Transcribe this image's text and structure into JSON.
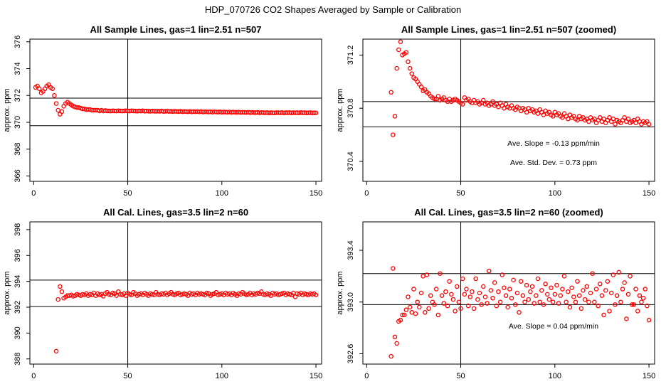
{
  "title": "HDP_070726  CO2 Shapes Averaged by Sample or Calibration",
  "colors": {
    "points": "#ff0000",
    "lines": "#000000"
  },
  "chart_data": [
    {
      "type": "scatter",
      "title": "All Sample Lines, gas=1 lin=2.51 n=507",
      "ylabel": "approx. ppm",
      "xlim": [
        -2,
        153
      ],
      "ylim": [
        365.6,
        376.2
      ],
      "xticks": [
        0,
        50,
        100,
        150
      ],
      "yticks": [
        366,
        368,
        370,
        372,
        374,
        376
      ],
      "vline": 50,
      "hlines": [
        369.75,
        371.8
      ],
      "notes": [],
      "x": [
        1,
        2,
        3,
        4,
        5,
        6,
        7,
        8,
        9,
        10,
        11,
        12,
        13,
        14,
        15,
        16,
        17,
        18,
        19,
        20,
        21,
        22,
        23,
        24,
        25,
        26,
        27,
        28,
        29,
        30,
        31,
        32,
        33,
        34,
        35,
        36,
        37,
        38,
        39,
        40,
        41,
        42,
        43,
        44,
        45,
        46,
        47,
        48,
        49,
        50,
        51,
        52,
        53,
        54,
        55,
        56,
        57,
        58,
        59,
        60,
        61,
        62,
        63,
        64,
        65,
        66,
        67,
        68,
        69,
        70,
        71,
        72,
        73,
        74,
        75,
        76,
        77,
        78,
        79,
        80,
        81,
        82,
        83,
        84,
        85,
        86,
        87,
        88,
        89,
        90,
        91,
        92,
        93,
        94,
        95,
        96,
        97,
        98,
        99,
        100,
        101,
        102,
        103,
        104,
        105,
        106,
        107,
        108,
        109,
        110,
        111,
        112,
        113,
        114,
        115,
        116,
        117,
        118,
        119,
        120,
        121,
        122,
        123,
        124,
        125,
        126,
        127,
        128,
        129,
        130,
        131,
        132,
        133,
        134,
        135,
        136,
        137,
        138,
        139,
        140,
        141,
        142,
        143,
        144,
        145,
        146,
        147,
        148,
        149,
        150
      ],
      "y": [
        372.6,
        372.7,
        372.5,
        372.2,
        372.3,
        372.5,
        372.7,
        372.8,
        372.6,
        372.5,
        372.0,
        371.4,
        370.9,
        370.6,
        370.8,
        371.2,
        371.4,
        371.5,
        371.4,
        371.3,
        371.2,
        371.15,
        371.1,
        371.1,
        371.05,
        371.0,
        371.0,
        370.95,
        370.95,
        370.95,
        370.9,
        370.9,
        370.9,
        370.9,
        370.85,
        370.9,
        370.85,
        370.88,
        370.85,
        370.85,
        370.84,
        370.86,
        370.85,
        370.84,
        370.86,
        370.85,
        370.84,
        370.85,
        370.86,
        370.85,
        370.84,
        370.86,
        370.85,
        370.84,
        370.83,
        370.85,
        370.84,
        370.86,
        370.83,
        370.84,
        370.83,
        370.82,
        370.84,
        370.83,
        370.82,
        370.83,
        370.82,
        370.84,
        370.81,
        370.82,
        370.83,
        370.81,
        370.82,
        370.8,
        370.82,
        370.81,
        370.8,
        370.82,
        370.79,
        370.81,
        370.8,
        370.79,
        370.81,
        370.78,
        370.8,
        370.79,
        370.8,
        370.78,
        370.8,
        370.77,
        370.79,
        370.78,
        370.77,
        370.79,
        370.76,
        370.78,
        370.77,
        370.76,
        370.78,
        370.75,
        370.77,
        370.76,
        370.75,
        370.77,
        370.74,
        370.76,
        370.75,
        370.74,
        370.76,
        370.73,
        370.75,
        370.74,
        370.73,
        370.75,
        370.72,
        370.74,
        370.73,
        370.72,
        370.74,
        370.71,
        370.73,
        370.72,
        370.71,
        370.73,
        370.7,
        370.72,
        370.71,
        370.7,
        370.72,
        370.72,
        370.71,
        370.73,
        370.7,
        370.72,
        370.71,
        370.73,
        370.7,
        370.72,
        370.71,
        370.72,
        370.7,
        370.73,
        370.71,
        370.72,
        370.7,
        370.71,
        370.72,
        370.7,
        370.71,
        370.7
      ]
    },
    {
      "type": "scatter",
      "title": "All Sample Lines, gas=1 lin=2.51 n=507 (zoomed)",
      "ylabel": "approx. ppm",
      "xlim": [
        -2,
        153
      ],
      "ylim": [
        370.25,
        371.32
      ],
      "xticks": [
        0,
        50,
        100,
        150
      ],
      "yticks": [
        370.4,
        370.8,
        371.2
      ],
      "vline": 50,
      "hlines": [
        370.66,
        370.85
      ],
      "notes": [
        "Ave. Slope =  -0.13  ppm/min",
        "Ave. Std. Dev. =  0.73  ppm"
      ],
      "x": [
        13,
        14,
        15,
        16,
        17,
        18,
        19,
        20,
        21,
        22,
        23,
        24,
        25,
        26,
        27,
        28,
        29,
        30,
        31,
        32,
        33,
        34,
        35,
        36,
        37,
        38,
        39,
        40,
        41,
        42,
        43,
        44,
        45,
        46,
        47,
        48,
        49,
        50,
        51,
        52,
        53,
        54,
        55,
        56,
        57,
        58,
        59,
        60,
        61,
        62,
        63,
        64,
        65,
        66,
        67,
        68,
        69,
        70,
        71,
        72,
        73,
        74,
        75,
        76,
        77,
        78,
        79,
        80,
        81,
        82,
        83,
        84,
        85,
        86,
        87,
        88,
        89,
        90,
        91,
        92,
        93,
        94,
        95,
        96,
        97,
        98,
        99,
        100,
        101,
        102,
        103,
        104,
        105,
        106,
        107,
        108,
        109,
        110,
        111,
        112,
        113,
        114,
        115,
        116,
        117,
        118,
        119,
        120,
        121,
        122,
        123,
        124,
        125,
        126,
        127,
        128,
        129,
        130,
        131,
        132,
        133,
        134,
        135,
        136,
        137,
        138,
        139,
        140,
        141,
        142,
        143,
        144,
        145,
        146,
        147,
        148,
        149,
        150
      ],
      "y": [
        370.92,
        370.6,
        370.74,
        371.1,
        371.24,
        371.3,
        371.2,
        371.21,
        371.22,
        371.15,
        371.1,
        371.06,
        371.03,
        371.02,
        371.0,
        370.98,
        370.96,
        370.93,
        370.94,
        370.92,
        370.91,
        370.89,
        370.88,
        370.87,
        370.87,
        370.89,
        370.86,
        370.87,
        370.88,
        370.86,
        370.85,
        370.87,
        370.85,
        370.86,
        370.87,
        370.86,
        370.85,
        370.84,
        370.83,
        370.88,
        370.86,
        370.87,
        370.85,
        370.84,
        370.86,
        370.84,
        370.85,
        370.83,
        370.84,
        370.86,
        370.83,
        370.84,
        370.82,
        370.83,
        370.85,
        370.82,
        370.83,
        370.81,
        370.84,
        370.82,
        370.8,
        370.83,
        370.81,
        370.8,
        370.82,
        370.8,
        370.79,
        370.81,
        370.8,
        370.78,
        370.8,
        370.79,
        370.77,
        370.8,
        370.78,
        370.79,
        370.77,
        370.78,
        370.76,
        370.79,
        370.77,
        370.75,
        370.78,
        370.76,
        370.77,
        370.75,
        370.74,
        370.77,
        370.75,
        370.76,
        370.74,
        370.73,
        370.76,
        370.74,
        370.72,
        370.75,
        370.73,
        370.74,
        370.72,
        370.71,
        370.74,
        370.72,
        370.73,
        370.71,
        370.72,
        370.7,
        370.73,
        370.71,
        370.72,
        370.69,
        370.71,
        370.73,
        370.7,
        370.72,
        370.69,
        370.71,
        370.73,
        370.7,
        370.72,
        370.68,
        370.71,
        370.7,
        370.69,
        370.71,
        370.73,
        370.7,
        370.72,
        370.69,
        370.7,
        370.71,
        370.69,
        370.72,
        370.7,
        370.68,
        370.7,
        370.69,
        370.7,
        370.68
      ]
    },
    {
      "type": "scatter",
      "title": "All Cal. Lines, gas=3.5 lin=2 n=60",
      "ylabel": "approx. ppm",
      "xlim": [
        -2,
        153
      ],
      "ylim": [
        387.6,
        398.6
      ],
      "xticks": [
        0,
        50,
        100,
        150
      ],
      "yticks": [
        388,
        390,
        392,
        394,
        396,
        398
      ],
      "vline": 50,
      "hlines": [
        392.05,
        394.1
      ],
      "notes": [],
      "x": [
        12,
        13,
        14,
        15,
        16,
        17,
        18,
        19,
        20,
        21,
        22,
        23,
        24,
        25,
        26,
        27,
        28,
        29,
        30,
        31,
        32,
        33,
        34,
        35,
        36,
        37,
        38,
        39,
        40,
        41,
        42,
        43,
        44,
        45,
        46,
        47,
        48,
        49,
        50,
        51,
        52,
        53,
        54,
        55,
        56,
        57,
        58,
        59,
        60,
        61,
        62,
        63,
        64,
        65,
        66,
        67,
        68,
        69,
        70,
        71,
        72,
        73,
        74,
        75,
        76,
        77,
        78,
        79,
        80,
        81,
        82,
        83,
        84,
        85,
        86,
        87,
        88,
        89,
        90,
        91,
        92,
        93,
        94,
        95,
        96,
        97,
        98,
        99,
        100,
        101,
        102,
        103,
        104,
        105,
        106,
        107,
        108,
        109,
        110,
        111,
        112,
        113,
        114,
        115,
        116,
        117,
        118,
        119,
        120,
        121,
        122,
        123,
        124,
        125,
        126,
        127,
        128,
        129,
        130,
        131,
        132,
        133,
        134,
        135,
        136,
        137,
        138,
        139,
        140,
        141,
        142,
        143,
        144,
        145,
        146,
        147,
        148,
        149,
        150
      ],
      "y": [
        388.6,
        392.6,
        393.6,
        393.2,
        392.7,
        392.8,
        392.9,
        392.9,
        392.95,
        392.85,
        392.9,
        393.0,
        392.95,
        392.9,
        393.0,
        392.95,
        393.05,
        392.9,
        393.0,
        392.95,
        393.1,
        392.9,
        393.05,
        392.95,
        393.0,
        392.85,
        393.05,
        393.15,
        393.0,
        392.95,
        393.1,
        393.05,
        392.9,
        393.2,
        393.0,
        392.95,
        393.05,
        392.9,
        393.1,
        393.0,
        392.95,
        393.15,
        393.05,
        392.9,
        393.0,
        393.05,
        392.95,
        393.1,
        393.0,
        392.9,
        393.05,
        393.0,
        392.95,
        393.15,
        393.0,
        392.95,
        393.05,
        393.0,
        393.1,
        392.95,
        393.05,
        393.15,
        393.0,
        392.95,
        393.05,
        393.1,
        392.95,
        393.0,
        393.05,
        393.0,
        392.9,
        393.1,
        393.0,
        393.05,
        392.95,
        393.1,
        393.0,
        393.05,
        393.0,
        392.95,
        393.1,
        393.05,
        392.9,
        393.0,
        393.05,
        393.15,
        392.95,
        393.0,
        393.05,
        392.95,
        393.1,
        393.0,
        393.05,
        392.95,
        393.1,
        393.0,
        392.9,
        393.05,
        393.0,
        393.15,
        393.05,
        392.95,
        393.0,
        393.1,
        392.95,
        393.05,
        393.0,
        393.1,
        393.05,
        393.2,
        393.0,
        392.95,
        393.05,
        393.0,
        392.9,
        393.1,
        393.0,
        393.05,
        392.95,
        393.0,
        393.05,
        393.1,
        392.95,
        393.05,
        393.0,
        392.95,
        393.1,
        392.8,
        393.05,
        393.0,
        393.1,
        392.95,
        393.05,
        393.0,
        392.95,
        393.05,
        393.0,
        393.05,
        392.95
      ]
    },
    {
      "type": "scatter",
      "title": "All Cal. Lines, gas=3.5 lin=2 n=60 (zoomed)",
      "ylabel": "approx. ppm",
      "xlim": [
        -2,
        153
      ],
      "ylim": [
        392.52,
        393.62
      ],
      "xticks": [
        0,
        50,
        100,
        150
      ],
      "yticks": [
        392.6,
        393.0,
        393.4
      ],
      "vline": 50,
      "hlines": [
        392.98,
        393.22
      ],
      "notes": [
        "Ave. Slope =  0.04  ppm/min"
      ],
      "x": [
        13,
        14,
        15,
        16,
        17,
        18,
        19,
        20,
        21,
        22,
        23,
        24,
        25,
        26,
        27,
        28,
        29,
        30,
        31,
        32,
        33,
        34,
        35,
        36,
        37,
        38,
        39,
        40,
        41,
        42,
        43,
        44,
        45,
        46,
        47,
        48,
        49,
        50,
        51,
        52,
        53,
        54,
        55,
        56,
        57,
        58,
        59,
        60,
        61,
        62,
        63,
        64,
        65,
        66,
        67,
        68,
        69,
        70,
        71,
        72,
        73,
        74,
        75,
        76,
        77,
        78,
        79,
        80,
        81,
        82,
        83,
        84,
        85,
        86,
        87,
        88,
        89,
        90,
        91,
        92,
        93,
        94,
        95,
        96,
        97,
        98,
        99,
        100,
        101,
        102,
        103,
        104,
        105,
        106,
        107,
        108,
        109,
        110,
        111,
        112,
        113,
        114,
        115,
        116,
        117,
        118,
        119,
        120,
        121,
        122,
        123,
        124,
        125,
        126,
        127,
        128,
        129,
        130,
        131,
        132,
        133,
        134,
        135,
        136,
        137,
        138,
        139,
        140,
        141,
        142,
        143,
        144,
        145,
        146,
        147,
        148,
        149,
        150
      ],
      "y": [
        392.58,
        393.26,
        392.73,
        392.68,
        392.85,
        392.86,
        392.9,
        392.9,
        392.94,
        393.04,
        392.96,
        392.92,
        393.1,
        392.91,
        393.0,
        392.96,
        393.07,
        393.2,
        392.92,
        393.21,
        392.95,
        393.05,
        393.0,
        392.98,
        393.1,
        392.9,
        393.22,
        393.05,
        392.99,
        393.08,
        392.97,
        393.16,
        393.06,
        393.02,
        392.93,
        393.12,
        393.0,
        392.95,
        393.18,
        393.06,
        393.1,
        392.97,
        393.04,
        393.08,
        392.95,
        393.18,
        393.02,
        393.07,
        392.98,
        393.12,
        393.04,
        392.99,
        393.24,
        393.09,
        393.03,
        393.15,
        392.97,
        393.08,
        393.0,
        393.21,
        393.11,
        393.05,
        392.96,
        393.1,
        393.03,
        393.17,
        392.98,
        393.07,
        392.92,
        393.16,
        393.05,
        393.0,
        393.13,
        393.02,
        393.08,
        393.12,
        392.99,
        393.05,
        393.18,
        393.0,
        393.09,
        392.98,
        393.14,
        393.06,
        393.02,
        393.11,
        393.0,
        393.06,
        393.13,
        392.99,
        393.05,
        393.1,
        393.2,
        393.0,
        393.08,
        392.96,
        393.11,
        393.04,
        393.0,
        393.16,
        393.05,
        392.95,
        393.09,
        393.02,
        393.12,
        393.0,
        393.07,
        393.22,
        393.0,
        393.1,
        392.97,
        393.14,
        393.05,
        392.9,
        393.09,
        393.16,
        392.93,
        393.07,
        393.21,
        392.98,
        393.05,
        393.23,
        393.0,
        393.1,
        393.15,
        392.87,
        393.06,
        393.2,
        392.98,
        392.98,
        393.1,
        392.93,
        393.05,
        393.0,
        393.03,
        393.1,
        392.97,
        392.86
      ]
    }
  ]
}
